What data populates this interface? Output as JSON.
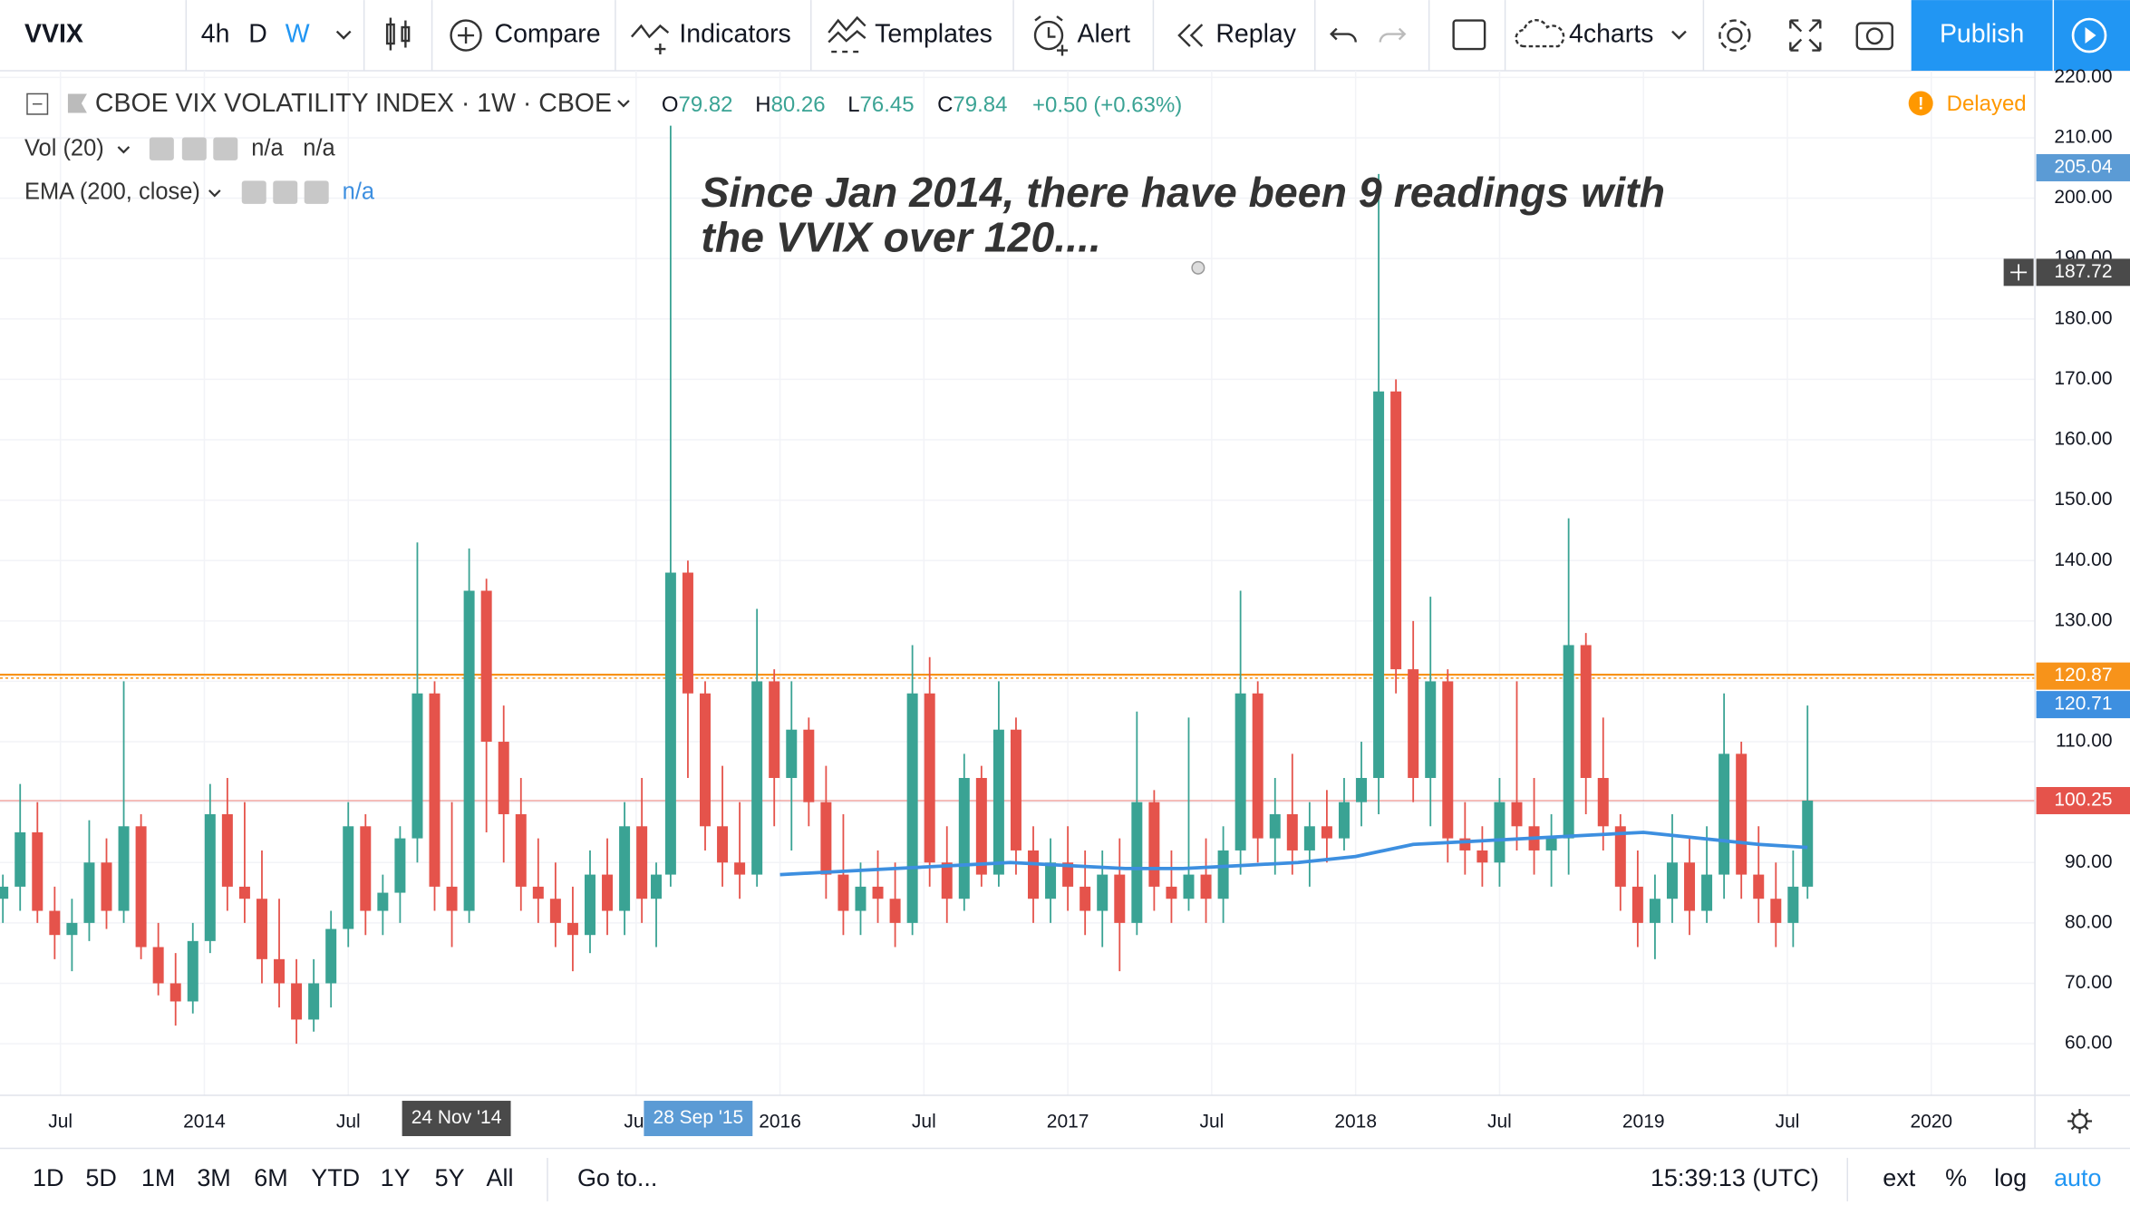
{
  "toolbar": {
    "symbol": "VVIX",
    "intervals": [
      "4h",
      "D",
      "W"
    ],
    "buttons": [
      "Compare",
      "Indicators",
      "Templates",
      "Alert",
      "Replay"
    ],
    "layout": "4charts",
    "publish": "Publish"
  },
  "legend": {
    "title": "CBOE VIX VOLATILITY INDEX · 1W · CBOE",
    "ohlc": [
      {
        "label": "O",
        "value": 79.82
      },
      {
        "label": "H",
        "value": 80.26
      },
      {
        "label": "L",
        "value": 76.45
      },
      {
        "label": "C",
        "value": 79.84
      }
    ],
    "change": "+0.50 (+0.63%)",
    "delayed": "Delayed",
    "indicators": [
      {
        "name": "Vol (20)",
        "values": [
          "n/a",
          "n/a"
        ]
      },
      {
        "name": "EMA (200, close)",
        "values": [
          "n/a"
        ]
      }
    ]
  },
  "chart_data": {
    "type": "candlestick",
    "annotation": [
      "Since Jan 2014, there have been 9 readings with",
      "the VVIX over 120...."
    ],
    "up_color": "#3aa394",
    "down_color": "#e5534b",
    "grid": true,
    "xlim": [
      2013.29,
      2020.36
    ],
    "ylim": [
      51.45,
      221.1
    ],
    "xticks": [
      {
        "value": 2013.5,
        "label": "Jul"
      },
      2014,
      {
        "value": 2014.5,
        "label": "Jul"
      },
      {
        "value": 2015.5,
        "label": "Jul"
      },
      2016,
      {
        "value": 2016.5,
        "label": "Jul"
      },
      2017,
      {
        "value": 2017.5,
        "label": "Jul"
      },
      2018,
      {
        "value": 2018.5,
        "label": "Jul"
      },
      2019,
      {
        "value": 2019.5,
        "label": "Jul"
      },
      2020
    ],
    "yticks": [
      {
        "value": 60,
        "label": "60.00"
      },
      {
        "value": 70,
        "label": "70.00"
      },
      {
        "value": 80,
        "label": "80.00"
      },
      {
        "value": 90,
        "label": "90.00"
      },
      {
        "value": 100,
        "label": "100.00"
      },
      {
        "value": 110,
        "label": "110.00"
      },
      {
        "value": 120,
        "label": "120.00"
      },
      {
        "value": 130,
        "label": "130.00"
      },
      {
        "value": 140,
        "label": "140.00"
      },
      {
        "value": 150,
        "label": "150.00"
      },
      {
        "value": 160,
        "label": "160.00"
      },
      {
        "value": 170,
        "label": "170.00"
      },
      {
        "value": 180,
        "label": "180.00"
      },
      {
        "value": 190,
        "label": "190.00"
      },
      {
        "value": 200,
        "label": "200.00"
      },
      {
        "value": 210,
        "label": "210.00"
      },
      {
        "value": 220,
        "label": "220.00"
      }
    ],
    "date_markers": [
      "24 Nov '14",
      "28 Sep '15"
    ],
    "x": [
      2013.3,
      2013.36,
      2013.42,
      2013.48,
      2013.54,
      2013.6,
      2013.66,
      2013.72,
      2013.78,
      2013.84,
      2013.9,
      2013.96,
      2014.02,
      2014.08,
      2014.14,
      2014.2,
      2014.26,
      2014.32,
      2014.38,
      2014.44,
      2014.5,
      2014.56,
      2014.62,
      2014.68,
      2014.74,
      2014.8,
      2014.86,
      2014.92,
      2014.98,
      2015.04,
      2015.1,
      2015.16,
      2015.22,
      2015.28,
      2015.34,
      2015.4,
      2015.46,
      2015.52,
      2015.57,
      2015.62,
      2015.68,
      2015.74,
      2015.8,
      2015.86,
      2015.92,
      2015.98,
      2016.04,
      2016.1,
      2016.16,
      2016.22,
      2016.28,
      2016.34,
      2016.4,
      2016.46,
      2016.52,
      2016.58,
      2016.64,
      2016.7,
      2016.76,
      2016.82,
      2016.88,
      2016.94,
      2017.0,
      2017.06,
      2017.12,
      2017.18,
      2017.24,
      2017.3,
      2017.36,
      2017.42,
      2017.48,
      2017.54,
      2017.6,
      2017.66,
      2017.72,
      2017.78,
      2017.84,
      2017.9,
      2017.96,
      2018.02,
      2018.08,
      2018.14,
      2018.2,
      2018.26,
      2018.32,
      2018.38,
      2018.44,
      2018.5,
      2018.56,
      2018.62,
      2018.68,
      2018.74,
      2018.8,
      2018.86,
      2018.92,
      2018.98,
      2019.04,
      2019.1,
      2019.16,
      2019.22,
      2019.28,
      2019.34,
      2019.4,
      2019.46,
      2019.52,
      2019.57
    ],
    "open": [
      84,
      86,
      95,
      82,
      78,
      80,
      90,
      82,
      96,
      76,
      70,
      67,
      77,
      98,
      86,
      84,
      74,
      70,
      64,
      70,
      79,
      96,
      82,
      85,
      94,
      118,
      86,
      82,
      135,
      110,
      98,
      86,
      84,
      80,
      78,
      88,
      82,
      96,
      84,
      88,
      138,
      118,
      96,
      90,
      88,
      120,
      104,
      112,
      100,
      88,
      82,
      86,
      84,
      80,
      118,
      90,
      84,
      104,
      88,
      112,
      92,
      84,
      90,
      86,
      82,
      88,
      80,
      100,
      86,
      84,
      88,
      84,
      92,
      118,
      94,
      98,
      92,
      96,
      94,
      100,
      104,
      168,
      122,
      104,
      120,
      94,
      92,
      90,
      100,
      96,
      92,
      94,
      126,
      104,
      96,
      86,
      80,
      84,
      90,
      82,
      88,
      108,
      88,
      84,
      80,
      86
    ],
    "high": [
      88,
      103,
      100,
      86,
      84,
      97,
      94,
      120,
      98,
      80,
      75,
      80,
      103,
      104,
      100,
      92,
      84,
      74,
      74,
      82,
      100,
      98,
      88,
      96,
      143,
      120,
      100,
      142,
      137,
      116,
      104,
      94,
      90,
      86,
      92,
      94,
      100,
      104,
      90,
      212,
      140,
      120,
      106,
      100,
      132,
      122,
      120,
      114,
      106,
      98,
      90,
      92,
      90,
      126,
      124,
      96,
      108,
      106,
      120,
      114,
      96,
      94,
      96,
      92,
      92,
      94,
      115,
      102,
      92,
      114,
      94,
      96,
      135,
      120,
      104,
      108,
      100,
      102,
      104,
      110,
      204,
      170,
      130,
      134,
      122,
      100,
      96,
      104,
      120,
      104,
      98,
      147,
      128,
      114,
      98,
      92,
      88,
      98,
      94,
      96,
      118,
      110,
      96,
      90,
      92,
      116
    ],
    "low": [
      80,
      82,
      80,
      74,
      72,
      77,
      79,
      80,
      74,
      68,
      63,
      65,
      75,
      82,
      80,
      70,
      66,
      60,
      62,
      66,
      76,
      78,
      78,
      80,
      90,
      82,
      76,
      80,
      95,
      90,
      82,
      80,
      76,
      72,
      75,
      78,
      78,
      80,
      76,
      86,
      104,
      92,
      86,
      84,
      86,
      96,
      92,
      96,
      84,
      78,
      78,
      80,
      76,
      78,
      86,
      80,
      82,
      86,
      86,
      88,
      80,
      80,
      82,
      78,
      76,
      72,
      78,
      82,
      80,
      82,
      80,
      80,
      88,
      90,
      88,
      88,
      86,
      90,
      92,
      96,
      98,
      118,
      100,
      96,
      90,
      88,
      86,
      86,
      92,
      88,
      86,
      88,
      98,
      92,
      82,
      76,
      74,
      80,
      78,
      80,
      84,
      84,
      80,
      76,
      76,
      84
    ],
    "close": [
      86,
      95,
      82,
      78,
      80,
      90,
      82,
      96,
      76,
      70,
      67,
      77,
      98,
      86,
      84,
      74,
      70,
      64,
      70,
      79,
      96,
      82,
      85,
      94,
      118,
      86,
      82,
      135,
      110,
      98,
      86,
      84,
      80,
      78,
      88,
      82,
      96,
      84,
      88,
      138,
      118,
      96,
      90,
      88,
      120,
      104,
      112,
      100,
      88,
      82,
      86,
      84,
      80,
      118,
      90,
      84,
      104,
      88,
      112,
      92,
      84,
      90,
      86,
      82,
      88,
      80,
      100,
      86,
      84,
      88,
      84,
      92,
      118,
      94,
      98,
      92,
      96,
      94,
      100,
      104,
      168,
      122,
      104,
      120,
      94,
      92,
      90,
      100,
      96,
      92,
      94,
      126,
      104,
      96,
      86,
      80,
      84,
      90,
      82,
      88,
      108,
      88,
      84,
      80,
      86,
      100.25
    ],
    "ema": {
      "color": "#3d8fe0",
      "x": [
        2016.0,
        2016.2,
        2016.4,
        2016.6,
        2016.8,
        2017.0,
        2017.2,
        2017.4,
        2017.6,
        2017.8,
        2018.0,
        2018.2,
        2018.4,
        2018.6,
        2018.8,
        2019.0,
        2019.2,
        2019.4,
        2019.57
      ],
      "values": [
        88,
        88.5,
        89,
        89.5,
        90,
        89.5,
        89,
        89,
        89.5,
        90,
        91,
        93,
        93.5,
        94,
        94.5,
        95,
        94,
        93,
        92.5
      ]
    },
    "price_labels": [
      {
        "value": 205.04,
        "color": "#5b9bd5",
        "line": false
      },
      {
        "value": 187.72,
        "color": "#4a4a4a",
        "line": false
      },
      {
        "value": 120.87,
        "color": "#f7931a",
        "line": true
      },
      {
        "value": 120.71,
        "color": "#3d8fe0",
        "line": false
      },
      {
        "value": 100.25,
        "color": "#e5534b",
        "line": true
      }
    ]
  },
  "bottom_bar": {
    "ranges": [
      "1D",
      "5D",
      "1M",
      "3M",
      "6M",
      "YTD",
      "1Y",
      "5Y",
      "All"
    ],
    "goto": "Go to...",
    "time": "15:39:13 (UTC)",
    "options": [
      "ext",
      "%",
      "log",
      "auto"
    ]
  }
}
